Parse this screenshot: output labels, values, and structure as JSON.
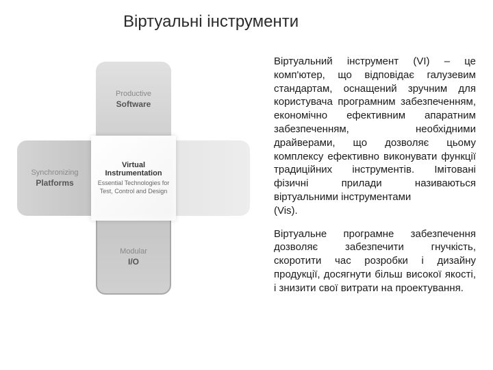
{
  "title": "Віртуальні інструменти",
  "diagram": {
    "top": {
      "light": "Productive",
      "bold": "Software"
    },
    "left": {
      "light": "Synchronizing",
      "bold": "Platforms"
    },
    "bottom": {
      "light": "Modular",
      "bold": "I/O"
    },
    "center": {
      "title": "Virtual Instrumentation",
      "sub": "Essential Technologies for Test, Control and Design"
    },
    "colors": {
      "arm_top_bg": "#d8d8d8",
      "arm_left_bg": "#cccccc",
      "arm_right_bg": "#eaeaea",
      "arm_bottom_bg": "#cbcbcb",
      "arm_bottom_border": "#a8a8a8",
      "center_bg": "#f9f9f9",
      "label_light": "#888888",
      "label_bold": "#555555",
      "center_title": "#333333",
      "center_sub": "#666666"
    }
  },
  "text": {
    "para1": "Віртуальний інструмент (VI) – це комп'ютер, що відповідає галузевим стандартам, оснащений зручним для користувача програмним забезпеченням, економічно ефективним апаратним забезпеченням, необхідними драйверами, що дозволяє цьому комплексу ефективно виконувати функції традиційних інструментів. Імітовані фізичні прилади називаються віртуальними інструментами",
    "para1_tail": "(Vis).",
    "para2": "Віртуальне програмне забезпечення дозволяє забезпечити гнучкість, скоротити час розробки і дизайну продукції, досягнути більш високої якості, і знизити свої витрати на проектування."
  },
  "style": {
    "background": "#ffffff",
    "title_fontsize": 24,
    "body_fontsize": 15,
    "title_color": "#2a2a2a",
    "body_color": "#1a1a1a"
  }
}
